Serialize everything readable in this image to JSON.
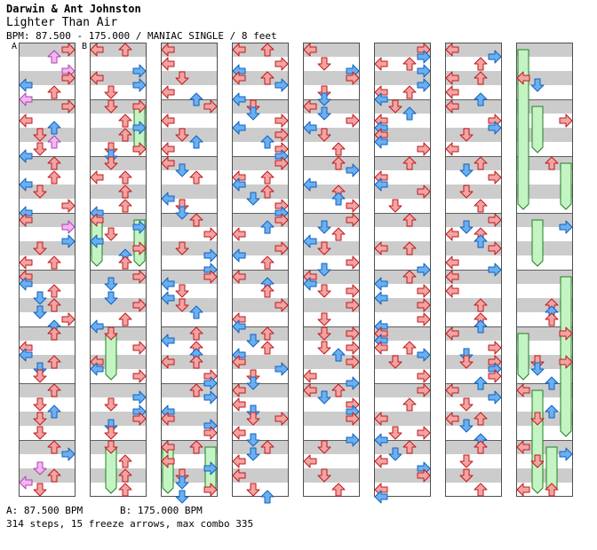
{
  "header": {
    "artist": "Darwin & Ant Johnston",
    "title": "Lighter Than Air",
    "info": "BPM: 87.500 - 175.000 / MANIAC SINGLE / 8 feet"
  },
  "markers": {
    "a": "A",
    "b": "B"
  },
  "footer": {
    "bpm_a": "A: 87.500 BPM",
    "bpm_b": "B: 175.000 BPM",
    "stats": "314 steps, 15 freeze arrows, max combo 335"
  },
  "colors": {
    "red_fill": "#f3a3a3",
    "red_stroke": "#c01818",
    "blue_fill": "#6ab0f0",
    "blue_stroke": "#1060c0",
    "pink_fill": "#f2b6f2",
    "pink_stroke": "#b040b0",
    "freeze_fill": "#c4f4c4",
    "freeze_stroke": "#208020",
    "stripe": "#cccccc"
  },
  "chart_data": {
    "type": "step-chart",
    "columns": 8,
    "measures_per_column": 8,
    "lanes": [
      "left",
      "down",
      "up",
      "right"
    ],
    "step_count": 314,
    "freeze_count": 15,
    "max_combo": 335,
    "freezes": [
      {
        "col": 1,
        "lane": 3,
        "start": 1.0,
        "end": 2.0
      },
      {
        "col": 1,
        "lane": 0,
        "start": 3.0,
        "end": 4.0
      },
      {
        "col": 1,
        "lane": 3,
        "start": 3.0,
        "end": 4.0
      },
      {
        "col": 1,
        "lane": 1,
        "start": 5.0,
        "end": 6.0
      },
      {
        "col": 1,
        "lane": 1,
        "start": 7.0,
        "end": 8.0
      },
      {
        "col": 2,
        "lane": 0,
        "start": 7.0,
        "end": 8.0
      },
      {
        "col": 2,
        "lane": 3,
        "start": 7.0,
        "end": 8.0
      },
      {
        "col": 7,
        "lane": 0,
        "start": 0.0,
        "end": 3.0
      },
      {
        "col": 7,
        "lane": 1,
        "start": 1.0,
        "end": 2.0
      },
      {
        "col": 7,
        "lane": 3,
        "start": 2.0,
        "end": 3.0
      },
      {
        "col": 7,
        "lane": 1,
        "start": 3.0,
        "end": 4.0
      },
      {
        "col": 7,
        "lane": 3,
        "start": 4.0,
        "end": 7.0
      },
      {
        "col": 7,
        "lane": 0,
        "start": 5.0,
        "end": 6.0
      },
      {
        "col": 7,
        "lane": 1,
        "start": 6.0,
        "end": 8.0
      },
      {
        "col": 7,
        "lane": 2,
        "start": 7.0,
        "end": 8.0
      }
    ]
  }
}
